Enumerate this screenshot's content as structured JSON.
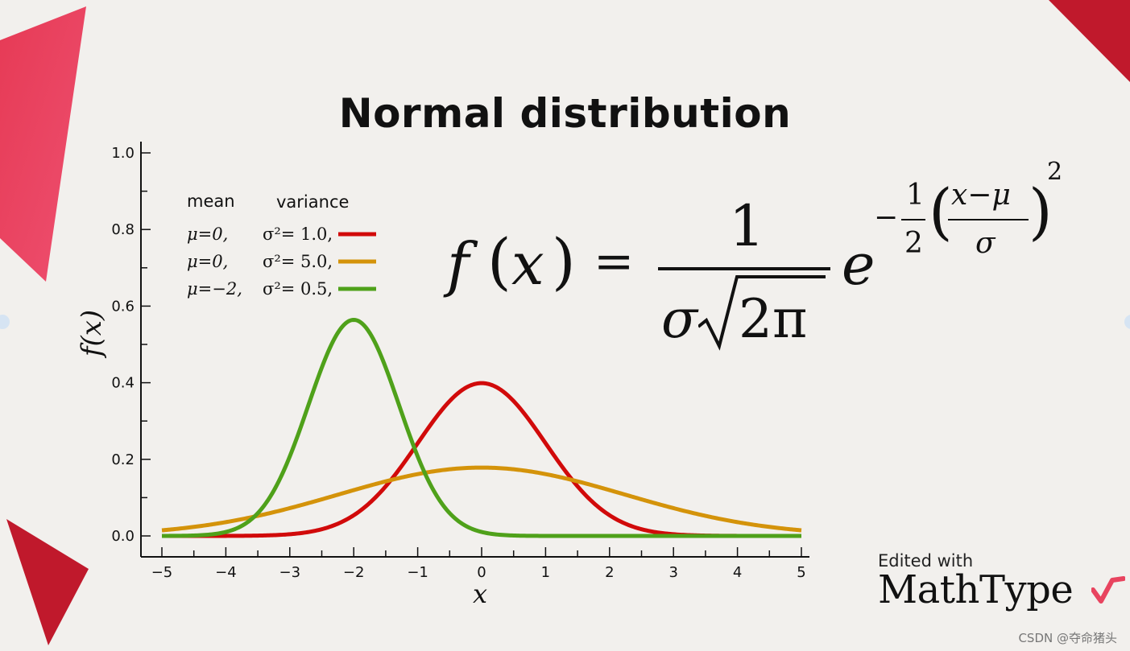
{
  "colors": {
    "background": "#f2f0ed",
    "accent_pink": "#e8445f",
    "accent_red": "#c0192c",
    "series_red": "#d10a0a",
    "series_orange": "#d4930a",
    "series_green": "#4fa11a"
  },
  "chart_data": {
    "type": "line",
    "title": "Normal distribution",
    "xlabel": "x",
    "ylabel": "f(x)",
    "xlim": [
      -5,
      5
    ],
    "ylim": [
      0,
      1.0
    ],
    "x_ticks": [
      "−5",
      "−4",
      "−3",
      "−2",
      "−1",
      "0",
      "1",
      "2",
      "3",
      "4",
      "5"
    ],
    "y_ticks": [
      "0.0",
      "0.2",
      "0.4",
      "0.6",
      "0.8",
      "1.0"
    ],
    "grid": false,
    "legend_position": "top-left",
    "legend_headers": [
      "mean",
      "variance"
    ],
    "series": [
      {
        "mean_label": "μ=0,",
        "var_label": "σ²= 1.0,",
        "mu": 0,
        "variance": 1.0,
        "color": "#d10a0a"
      },
      {
        "mean_label": "μ=0,",
        "var_label": "σ²= 5.0,",
        "mu": 0,
        "variance": 5.0,
        "color": "#d4930a"
      },
      {
        "mean_label": "μ=−2,",
        "var_label": "σ²= 0.5,",
        "mu": -2,
        "variance": 0.5,
        "color": "#4fa11a"
      }
    ]
  },
  "formula": {
    "lhs_f": "f",
    "lhs_open": "(",
    "lhs_x": "x",
    "lhs_close": ")",
    "equals": "=",
    "numerator": "1",
    "den_sigma": "σ",
    "den_radicand": "2π",
    "base": "e",
    "exp_minus": "−",
    "exp_num": "1",
    "exp_den": "2",
    "exp_open": "(",
    "exp_inner_num": "x−μ",
    "exp_inner_den": "σ",
    "exp_close": ")",
    "exp_power": "2"
  },
  "branding": {
    "edited": "Edited with",
    "name": "MathType"
  },
  "watermark": "CSDN @夺命猪头"
}
